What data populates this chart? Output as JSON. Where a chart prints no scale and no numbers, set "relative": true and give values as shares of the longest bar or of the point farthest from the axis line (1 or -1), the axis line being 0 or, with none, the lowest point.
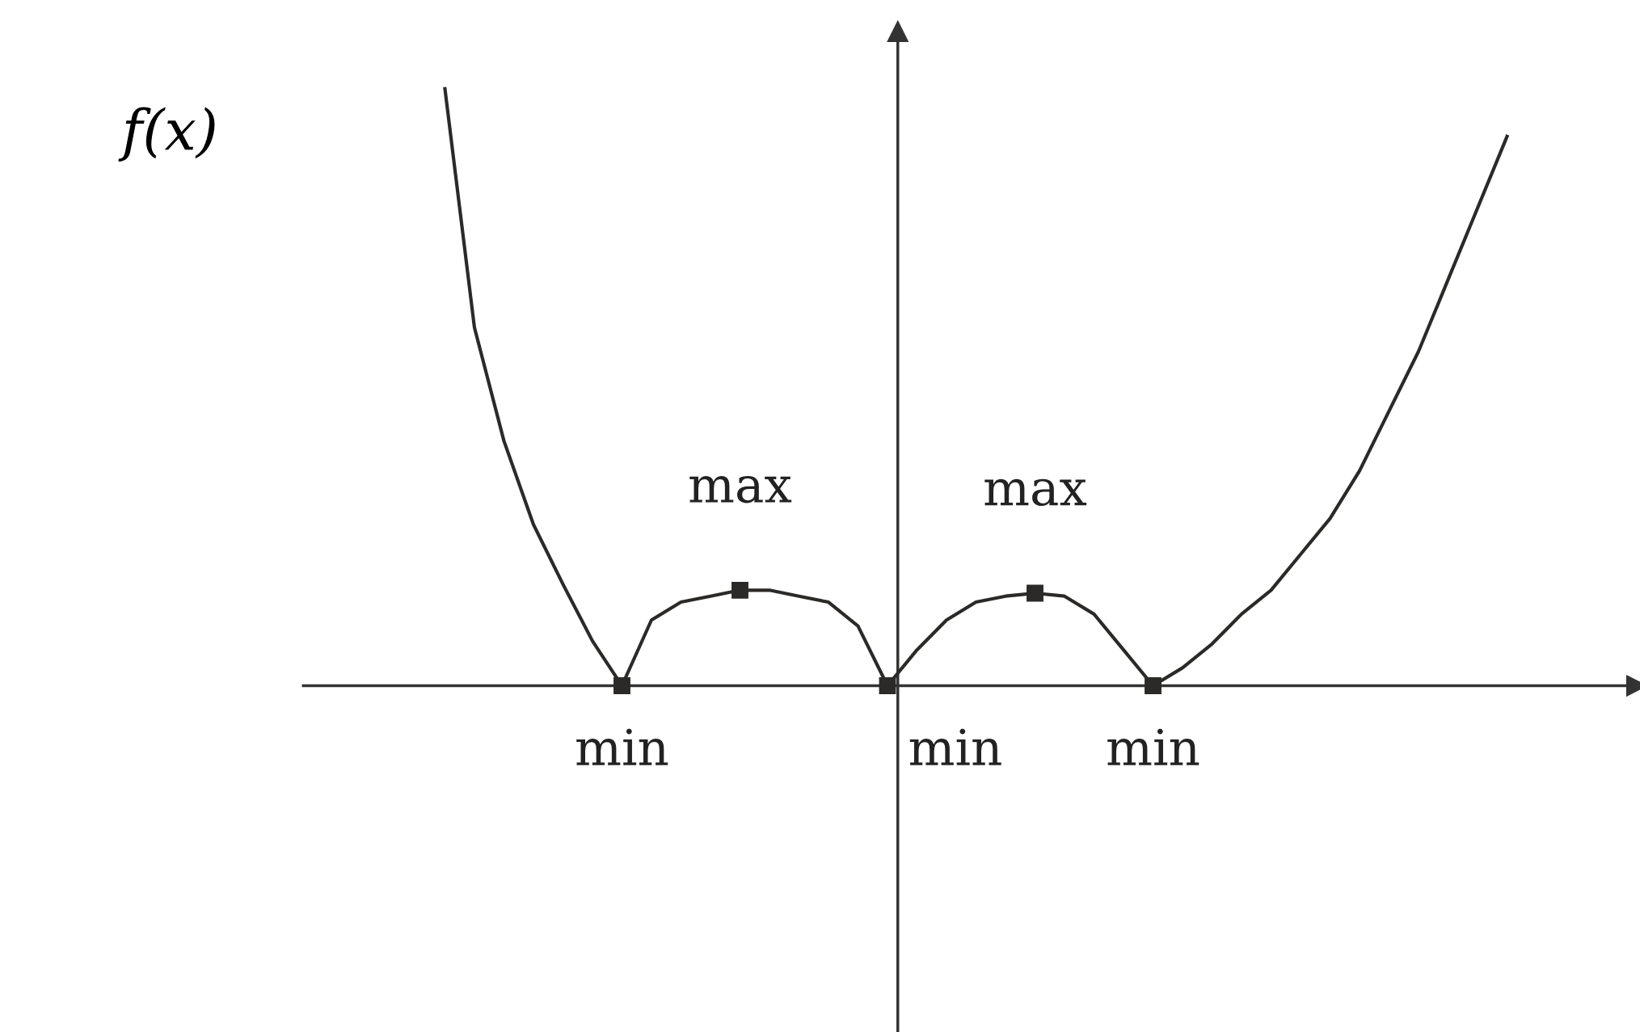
{
  "chart_data": {
    "type": "line",
    "relative": true,
    "ylabel": "f(x)",
    "color": "#2b2a28",
    "grid": false,
    "categories": [
      null,
      null,
      null,
      null,
      null,
      null,
      null,
      null,
      null,
      null,
      null,
      null,
      null,
      null,
      null,
      null,
      null,
      null,
      null,
      null,
      null,
      null,
      null,
      null,
      null,
      null,
      null,
      null,
      null,
      null,
      null,
      null,
      null,
      null,
      null,
      null,
      null
    ],
    "values": [
      1.0,
      0.6,
      0.41,
      0.27,
      0.17,
      0.075,
      0,
      0.11,
      0.14,
      0.15,
      0.16,
      0.16,
      0.15,
      0.14,
      0.1,
      0,
      0.06,
      0.11,
      0.14,
      0.15,
      0.155,
      0.15,
      0.12,
      0.06,
      0,
      0.03,
      0.07,
      0.12,
      0.16,
      0.22,
      0.28,
      0.36,
      0.46,
      0.56,
      0.68,
      0.8,
      0.92
    ],
    "annotations": [
      "min",
      "max",
      "min",
      "max",
      "min"
    ]
  }
}
